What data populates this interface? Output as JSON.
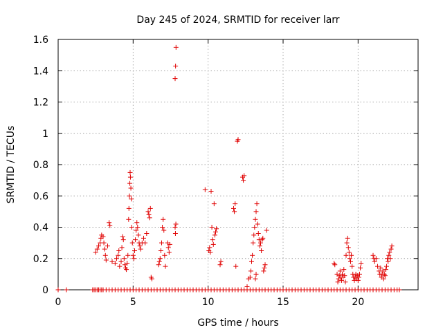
{
  "chart_data": {
    "type": "scatter",
    "title": "Day 245 of 2024, SRMTID for receiver larr",
    "xlabel": "GPS time / hours",
    "ylabel": "SRMTID / TECUs",
    "xlim": [
      0,
      24
    ],
    "ylim": [
      0,
      1.6
    ],
    "xticks": [
      "0",
      "5",
      "10",
      "15",
      "20"
    ],
    "xtick_values": [
      0,
      5,
      10,
      15,
      20
    ],
    "yticks": [
      "0",
      "0.2",
      "0.4",
      "0.6",
      "0.8",
      "1",
      "1.2",
      "1.4",
      "1.6"
    ],
    "ytick_values": [
      0,
      0.2,
      0.4,
      0.6,
      0.8,
      1.0,
      1.2,
      1.4,
      1.6
    ],
    "grid": true,
    "marker": "+",
    "color": "#e00000",
    "series": [
      {
        "name": "SRMTID",
        "points": [
          [
            0.0,
            0
          ],
          [
            0.55,
            0
          ],
          [
            2.3,
            0
          ],
          [
            2.4,
            0
          ],
          [
            2.5,
            0
          ],
          [
            2.6,
            0
          ],
          [
            2.7,
            0
          ],
          [
            2.8,
            0
          ],
          [
            2.9,
            0
          ],
          [
            3.0,
            0
          ],
          [
            3.2,
            0
          ],
          [
            3.4,
            0
          ],
          [
            3.6,
            0
          ],
          [
            3.8,
            0
          ],
          [
            4.0,
            0
          ],
          [
            4.2,
            0
          ],
          [
            4.4,
            0
          ],
          [
            4.6,
            0
          ],
          [
            4.8,
            0
          ],
          [
            5.0,
            0
          ],
          [
            5.2,
            0
          ],
          [
            5.4,
            0
          ],
          [
            5.6,
            0
          ],
          [
            5.8,
            0
          ],
          [
            6.0,
            0
          ],
          [
            6.2,
            0
          ],
          [
            6.4,
            0
          ],
          [
            6.6,
            0
          ],
          [
            6.8,
            0
          ],
          [
            7.0,
            0
          ],
          [
            7.2,
            0
          ],
          [
            7.4,
            0
          ],
          [
            7.6,
            0
          ],
          [
            7.8,
            0
          ],
          [
            8.0,
            0
          ],
          [
            8.2,
            0
          ],
          [
            8.4,
            0
          ],
          [
            8.6,
            0
          ],
          [
            8.8,
            0
          ],
          [
            9.0,
            0
          ],
          [
            9.2,
            0
          ],
          [
            9.4,
            0
          ],
          [
            9.6,
            0
          ],
          [
            9.8,
            0
          ],
          [
            10.0,
            0
          ],
          [
            10.2,
            0
          ],
          [
            10.4,
            0
          ],
          [
            10.6,
            0
          ],
          [
            10.8,
            0
          ],
          [
            11.0,
            0
          ],
          [
            11.2,
            0
          ],
          [
            11.4,
            0
          ],
          [
            11.6,
            0
          ],
          [
            11.8,
            0
          ],
          [
            12.0,
            0
          ],
          [
            12.2,
            0
          ],
          [
            12.4,
            0
          ],
          [
            12.6,
            0
          ],
          [
            12.8,
            0
          ],
          [
            13.0,
            0
          ],
          [
            13.2,
            0
          ],
          [
            13.4,
            0
          ],
          [
            13.6,
            0
          ],
          [
            13.8,
            0
          ],
          [
            14.0,
            0
          ],
          [
            14.2,
            0
          ],
          [
            14.4,
            0
          ],
          [
            14.6,
            0
          ],
          [
            14.8,
            0
          ],
          [
            15.0,
            0
          ],
          [
            15.2,
            0
          ],
          [
            15.4,
            0
          ],
          [
            15.6,
            0
          ],
          [
            15.8,
            0
          ],
          [
            16.0,
            0
          ],
          [
            16.2,
            0
          ],
          [
            16.4,
            0
          ],
          [
            16.6,
            0
          ],
          [
            16.8,
            0
          ],
          [
            17.0,
            0
          ],
          [
            17.2,
            0
          ],
          [
            17.4,
            0
          ],
          [
            17.6,
            0
          ],
          [
            17.8,
            0
          ],
          [
            18.0,
            0
          ],
          [
            18.2,
            0
          ],
          [
            18.4,
            0
          ],
          [
            18.6,
            0
          ],
          [
            18.8,
            0
          ],
          [
            19.0,
            0
          ],
          [
            19.2,
            0
          ],
          [
            19.4,
            0
          ],
          [
            19.6,
            0
          ],
          [
            19.8,
            0
          ],
          [
            20.0,
            0
          ],
          [
            20.2,
            0
          ],
          [
            20.4,
            0
          ],
          [
            20.6,
            0
          ],
          [
            20.8,
            0
          ],
          [
            21.0,
            0
          ],
          [
            21.2,
            0
          ],
          [
            21.4,
            0
          ],
          [
            21.6,
            0
          ],
          [
            21.8,
            0
          ],
          [
            22.0,
            0
          ],
          [
            22.2,
            0
          ],
          [
            22.4,
            0
          ],
          [
            22.6,
            0
          ],
          [
            22.75,
            0
          ],
          [
            2.5,
            0.24
          ],
          [
            2.6,
            0.26
          ],
          [
            2.7,
            0.28
          ],
          [
            2.8,
            0.3
          ],
          [
            2.85,
            0.33
          ],
          [
            2.9,
            0.35
          ],
          [
            3.0,
            0.34
          ],
          [
            3.05,
            0.3
          ],
          [
            3.1,
            0.26
          ],
          [
            3.15,
            0.22
          ],
          [
            3.2,
            0.19
          ],
          [
            3.3,
            0.28
          ],
          [
            3.4,
            0.43
          ],
          [
            3.45,
            0.41
          ],
          [
            3.6,
            0.18
          ],
          [
            3.8,
            0.17
          ],
          [
            3.9,
            0.2
          ],
          [
            4.0,
            0.22
          ],
          [
            4.05,
            0.25
          ],
          [
            4.1,
            0.15
          ],
          [
            4.2,
            0.18
          ],
          [
            4.25,
            0.27
          ],
          [
            4.3,
            0.34
          ],
          [
            4.35,
            0.32
          ],
          [
            4.4,
            0.2
          ],
          [
            4.45,
            0.16
          ],
          [
            4.5,
            0.14
          ],
          [
            4.55,
            0.13
          ],
          [
            4.6,
            0.17
          ],
          [
            4.65,
            0.22
          ],
          [
            4.7,
            0.45
          ],
          [
            4.72,
            0.52
          ],
          [
            4.75,
            0.6
          ],
          [
            4.78,
            0.68
          ],
          [
            4.8,
            0.75
          ],
          [
            4.82,
            0.72
          ],
          [
            4.85,
            0.65
          ],
          [
            4.88,
            0.58
          ],
          [
            4.9,
            0.4
          ],
          [
            4.95,
            0.3
          ],
          [
            5.0,
            0.22
          ],
          [
            5.05,
            0.2
          ],
          [
            5.1,
            0.25
          ],
          [
            5.15,
            0.32
          ],
          [
            5.2,
            0.38
          ],
          [
            5.25,
            0.43
          ],
          [
            5.3,
            0.4
          ],
          [
            5.35,
            0.35
          ],
          [
            5.4,
            0.3
          ],
          [
            5.45,
            0.28
          ],
          [
            5.5,
            0.26
          ],
          [
            5.6,
            0.3
          ],
          [
            5.7,
            0.33
          ],
          [
            5.8,
            0.3
          ],
          [
            5.9,
            0.36
          ],
          [
            6.0,
            0.5
          ],
          [
            6.05,
            0.48
          ],
          [
            6.1,
            0.46
          ],
          [
            6.15,
            0.52
          ],
          [
            6.2,
            0.08
          ],
          [
            6.25,
            0.07
          ],
          [
            6.7,
            0.16
          ],
          [
            6.75,
            0.18
          ],
          [
            6.8,
            0.2
          ],
          [
            6.85,
            0.25
          ],
          [
            6.9,
            0.3
          ],
          [
            6.95,
            0.4
          ],
          [
            7.0,
            0.45
          ],
          [
            7.05,
            0.38
          ],
          [
            7.1,
            0.22
          ],
          [
            7.15,
            0.15
          ],
          [
            7.3,
            0.3
          ],
          [
            7.35,
            0.27
          ],
          [
            7.4,
            0.24
          ],
          [
            7.45,
            0.29
          ],
          [
            7.8,
            0.4
          ],
          [
            7.82,
            0.36
          ],
          [
            7.85,
            0.42
          ],
          [
            7.8,
            1.35
          ],
          [
            7.83,
            1.43
          ],
          [
            7.86,
            1.55
          ],
          [
            9.8,
            0.64
          ],
          [
            10.05,
            0.25
          ],
          [
            10.1,
            0.27
          ],
          [
            10.15,
            0.24
          ],
          [
            10.2,
            0.63
          ],
          [
            10.25,
            0.4
          ],
          [
            10.3,
            0.32
          ],
          [
            10.35,
            0.29
          ],
          [
            10.4,
            0.55
          ],
          [
            10.45,
            0.35
          ],
          [
            10.5,
            0.37
          ],
          [
            10.55,
            0.39
          ],
          [
            10.8,
            0.16
          ],
          [
            10.85,
            0.18
          ],
          [
            11.7,
            0.52
          ],
          [
            11.75,
            0.5
          ],
          [
            11.8,
            0.55
          ],
          [
            11.85,
            0.15
          ],
          [
            11.95,
            0.95
          ],
          [
            12.0,
            0.96
          ],
          [
            12.3,
            0.72
          ],
          [
            12.35,
            0.7
          ],
          [
            12.4,
            0.73
          ],
          [
            12.6,
            0.02
          ],
          [
            12.7,
            0.07
          ],
          [
            12.8,
            0.08
          ],
          [
            12.85,
            0.12
          ],
          [
            12.9,
            0.18
          ],
          [
            12.95,
            0.22
          ],
          [
            13.0,
            0.3
          ],
          [
            13.05,
            0.35
          ],
          [
            13.1,
            0.4
          ],
          [
            13.15,
            0.45
          ],
          [
            13.2,
            0.5
          ],
          [
            13.25,
            0.55
          ],
          [
            13.3,
            0.42
          ],
          [
            13.35,
            0.36
          ],
          [
            13.4,
            0.32
          ],
          [
            13.45,
            0.28
          ],
          [
            13.5,
            0.3
          ],
          [
            13.55,
            0.25
          ],
          [
            13.6,
            0.32
          ],
          [
            13.65,
            0.33
          ],
          [
            13.7,
            0.12
          ],
          [
            13.75,
            0.14
          ],
          [
            13.8,
            0.16
          ],
          [
            13.9,
            0.38
          ],
          [
            13.2,
            0.1
          ],
          [
            13.15,
            0.07
          ],
          [
            18.4,
            0.17
          ],
          [
            18.45,
            0.16
          ],
          [
            18.6,
            0.1
          ],
          [
            18.65,
            0.05
          ],
          [
            18.7,
            0.07
          ],
          [
            18.75,
            0.09
          ],
          [
            18.8,
            0.12
          ],
          [
            18.85,
            0.08
          ],
          [
            18.9,
            0.06
          ],
          [
            18.95,
            0.1
          ],
          [
            19.0,
            0.08
          ],
          [
            19.05,
            0.13
          ],
          [
            19.1,
            0.09
          ],
          [
            19.15,
            0.05
          ],
          [
            19.2,
            0.22
          ],
          [
            19.25,
            0.3
          ],
          [
            19.3,
            0.33
          ],
          [
            19.35,
            0.27
          ],
          [
            19.4,
            0.24
          ],
          [
            19.45,
            0.2
          ],
          [
            19.5,
            0.18
          ],
          [
            19.55,
            0.22
          ],
          [
            19.6,
            0.15
          ],
          [
            19.65,
            0.1
          ],
          [
            19.7,
            0.08
          ],
          [
            19.75,
            0.06
          ],
          [
            19.8,
            0.08
          ],
          [
            19.85,
            0.1
          ],
          [
            19.9,
            0.07
          ],
          [
            19.95,
            0.09
          ],
          [
            20.0,
            0.06
          ],
          [
            20.05,
            0.08
          ],
          [
            20.1,
            0.1
          ],
          [
            20.15,
            0.14
          ],
          [
            20.2,
            0.17
          ],
          [
            21.0,
            0.22
          ],
          [
            21.05,
            0.2
          ],
          [
            21.1,
            0.18
          ],
          [
            21.2,
            0.2
          ],
          [
            21.3,
            0.15
          ],
          [
            21.4,
            0.12
          ],
          [
            21.45,
            0.1
          ],
          [
            21.5,
            0.14
          ],
          [
            21.55,
            0.08
          ],
          [
            21.6,
            0.1
          ],
          [
            21.65,
            0.12
          ],
          [
            21.7,
            0.07
          ],
          [
            21.75,
            0.1
          ],
          [
            21.8,
            0.09
          ],
          [
            21.85,
            0.13
          ],
          [
            21.9,
            0.15
          ],
          [
            21.95,
            0.2
          ],
          [
            22.0,
            0.18
          ],
          [
            22.05,
            0.22
          ],
          [
            22.1,
            0.24
          ],
          [
            22.15,
            0.2
          ],
          [
            22.2,
            0.26
          ],
          [
            22.25,
            0.28
          ]
        ]
      }
    ]
  }
}
